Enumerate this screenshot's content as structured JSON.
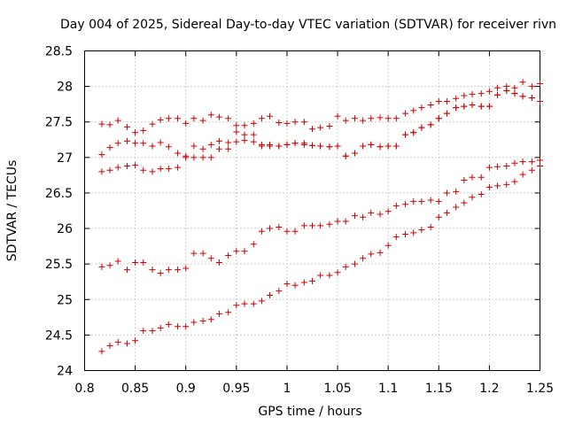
{
  "chart_data": {
    "type": "scatter",
    "title": "Day 004 of 2025, Sidereal Day-to-day VTEC variation (SDTVAR) for receiver rivn",
    "xlabel": "GPS time / hours",
    "ylabel": "SDTVAR / TECUs",
    "xlim": [
      0.8,
      1.25
    ],
    "ylim": [
      24,
      28.5
    ],
    "xticks": [
      0.8,
      0.85,
      0.9,
      0.95,
      1,
      1.05,
      1.1,
      1.15,
      1.2,
      1.25
    ],
    "xtick_labels": [
      "0.8",
      "0.85",
      "0.9",
      "0.95",
      "1",
      "1.05",
      "1.1",
      "1.15",
      "1.2",
      "1.25"
    ],
    "yticks": [
      24,
      24.5,
      25,
      25.5,
      26,
      26.5,
      27,
      27.5,
      28,
      28.5
    ],
    "ytick_labels": [
      "24",
      "24.5",
      "25",
      "25.5",
      "26",
      "26.5",
      "27",
      "27.5",
      "28",
      "28.5"
    ],
    "grid": true,
    "marker": "+",
    "color": "#cc0000",
    "series": [
      {
        "name": "series-1",
        "x": [
          0.817,
          0.825,
          0.833,
          0.842,
          0.85,
          0.858,
          0.867,
          0.875,
          0.883,
          0.892,
          0.9,
          0.908,
          0.917,
          0.925,
          0.933,
          0.942,
          0.95,
          0.958,
          0.967,
          0.975,
          0.983,
          0.992,
          1.0,
          1.008,
          1.017,
          1.025,
          1.033,
          1.042,
          1.05,
          1.058,
          1.067,
          1.075,
          1.083,
          1.092,
          1.1,
          1.108,
          1.117,
          1.125,
          1.133,
          1.142,
          1.15,
          1.158,
          1.167,
          1.175,
          1.183,
          1.192,
          1.2,
          1.208,
          1.217,
          1.225,
          1.233,
          1.242,
          1.25
        ],
        "y": [
          27.47,
          27.46,
          27.52,
          27.43,
          27.35,
          27.38,
          27.47,
          27.53,
          27.55,
          27.55,
          27.48,
          27.55,
          27.52,
          27.6,
          27.57,
          27.55,
          27.45,
          27.45,
          27.48,
          27.55,
          27.58,
          27.49,
          27.48,
          27.5,
          27.5,
          27.4,
          27.42,
          27.44,
          27.58,
          27.52,
          27.55,
          27.52,
          27.55,
          27.56,
          27.55,
          27.55,
          27.62,
          27.66,
          27.7,
          27.74,
          27.79,
          27.79,
          27.83,
          27.87,
          27.89,
          27.9,
          27.93,
          27.98,
          28.0,
          27.98,
          28.06,
          28.0,
          28.04
        ]
      },
      {
        "name": "series-2",
        "x": [
          0.817,
          0.825,
          0.833,
          0.842,
          0.85,
          0.858,
          0.867,
          0.875,
          0.883,
          0.892,
          0.9,
          0.908,
          0.917,
          0.925,
          0.933,
          0.942,
          0.95,
          0.958,
          0.967,
          0.975,
          0.983,
          0.992,
          1.0,
          1.008,
          1.017,
          1.025,
          1.033,
          1.042,
          1.05,
          1.058,
          1.067,
          1.075,
          1.083,
          1.092,
          1.1,
          1.108,
          1.117,
          1.125,
          1.133,
          1.142,
          1.15,
          1.158,
          1.167,
          1.175,
          1.183,
          1.192,
          1.2,
          1.208,
          1.217,
          1.225,
          1.233,
          1.242,
          1.25
        ],
        "y": [
          27.04,
          27.14,
          27.2,
          27.23,
          27.2,
          27.2,
          27.16,
          27.21,
          27.15,
          27.06,
          27.02,
          27.16,
          27.12,
          27.18,
          27.23,
          27.21,
          27.36,
          27.32,
          27.32,
          27.16,
          27.16,
          27.16,
          27.18,
          27.2,
          27.2,
          27.17,
          27.16,
          27.15,
          27.16,
          27.02,
          27.06,
          27.16,
          27.18,
          27.15,
          27.16,
          27.16,
          27.32,
          27.35,
          27.42,
          27.46,
          27.55,
          27.62,
          27.7,
          27.72,
          27.74,
          27.72,
          27.72,
          27.88,
          27.94,
          27.9,
          27.86,
          27.84,
          27.79
        ]
      },
      {
        "name": "series-3",
        "x": [
          0.817,
          0.825,
          0.833,
          0.842,
          0.85,
          0.858,
          0.867,
          0.875,
          0.883,
          0.892,
          0.9,
          0.908,
          0.917,
          0.925,
          0.933,
          0.942,
          0.95,
          0.958,
          0.967,
          0.975,
          0.983,
          0.992,
          1.0,
          1.008,
          1.017,
          1.025,
          1.033,
          1.042,
          1.05,
          1.058,
          1.067,
          1.075,
          1.083,
          1.092,
          1.1,
          1.108,
          1.117,
          1.125,
          1.133,
          1.142,
          1.15,
          1.158,
          1.167,
          1.175,
          1.183,
          1.192,
          1.2,
          1.208,
          1.217,
          1.225,
          1.233,
          1.242,
          1.25
        ],
        "y": [
          26.8,
          26.82,
          26.86,
          26.88,
          26.89,
          26.82,
          26.8,
          26.84,
          26.84,
          26.86,
          27.0,
          27.0,
          27.0,
          27.0,
          27.12,
          27.12,
          27.22,
          27.24,
          27.22,
          27.18,
          27.18,
          27.16,
          27.18,
          27.2,
          27.18,
          27.17,
          27.16,
          27.15,
          27.16,
          27.02,
          27.06,
          27.16,
          27.18,
          27.15,
          27.16,
          27.16,
          27.32,
          27.35,
          27.42,
          27.46,
          27.55,
          27.62,
          27.7,
          27.72,
          27.74,
          27.72,
          27.72,
          27.88,
          27.94,
          27.9,
          27.86,
          27.84,
          27.79
        ]
      },
      {
        "name": "series-4",
        "x": [
          0.817,
          0.825,
          0.833,
          0.842,
          0.85,
          0.858,
          0.867,
          0.875,
          0.883,
          0.892,
          0.9,
          0.908,
          0.917,
          0.925,
          0.933,
          0.942,
          0.95,
          0.958,
          0.967,
          0.975,
          0.983,
          0.992,
          1.0,
          1.008,
          1.017,
          1.025,
          1.033,
          1.042,
          1.05,
          1.058,
          1.067,
          1.075,
          1.083,
          1.092,
          1.1,
          1.108,
          1.117,
          1.125,
          1.133,
          1.142,
          1.15,
          1.158,
          1.167,
          1.175,
          1.183,
          1.192,
          1.2,
          1.208,
          1.217,
          1.225,
          1.233,
          1.242,
          1.25
        ],
        "y": [
          25.46,
          25.48,
          25.54,
          25.42,
          25.52,
          25.52,
          25.42,
          25.37,
          25.42,
          25.42,
          25.44,
          25.65,
          25.65,
          25.58,
          25.52,
          25.62,
          25.68,
          25.68,
          25.78,
          25.96,
          26.0,
          26.02,
          25.96,
          25.96,
          26.04,
          26.04,
          26.04,
          26.06,
          26.1,
          26.1,
          26.18,
          26.16,
          26.22,
          26.2,
          26.24,
          26.32,
          26.34,
          26.38,
          26.38,
          26.4,
          26.38,
          26.5,
          26.52,
          26.68,
          26.72,
          26.72,
          26.86,
          26.87,
          26.88,
          26.92,
          26.94,
          26.94,
          26.96
        ]
      },
      {
        "name": "series-5",
        "x": [
          0.817,
          0.825,
          0.833,
          0.842,
          0.85,
          0.858,
          0.867,
          0.875,
          0.883,
          0.892,
          0.9,
          0.908,
          0.917,
          0.925,
          0.933,
          0.942,
          0.95,
          0.958,
          0.967,
          0.975,
          0.983,
          0.992,
          1.0,
          1.008,
          1.017,
          1.025,
          1.033,
          1.042,
          1.05,
          1.058,
          1.067,
          1.075,
          1.083,
          1.092,
          1.1,
          1.108,
          1.117,
          1.125,
          1.133,
          1.142,
          1.15,
          1.158,
          1.167,
          1.175,
          1.183,
          1.192,
          1.2,
          1.208,
          1.217,
          1.225,
          1.233,
          1.242,
          1.25
        ],
        "y": [
          24.27,
          24.35,
          24.4,
          24.38,
          24.42,
          24.56,
          24.56,
          24.6,
          24.65,
          24.62,
          24.62,
          24.68,
          24.7,
          24.72,
          24.8,
          24.82,
          24.92,
          24.94,
          24.94,
          24.98,
          25.06,
          25.12,
          25.22,
          25.2,
          25.24,
          25.26,
          25.34,
          25.34,
          25.38,
          25.46,
          25.5,
          25.58,
          25.64,
          25.66,
          25.76,
          25.88,
          25.92,
          25.94,
          25.98,
          26.02,
          26.16,
          26.22,
          26.3,
          26.36,
          26.44,
          26.48,
          26.58,
          26.6,
          26.62,
          26.66,
          26.76,
          26.82,
          26.88
        ]
      }
    ]
  }
}
